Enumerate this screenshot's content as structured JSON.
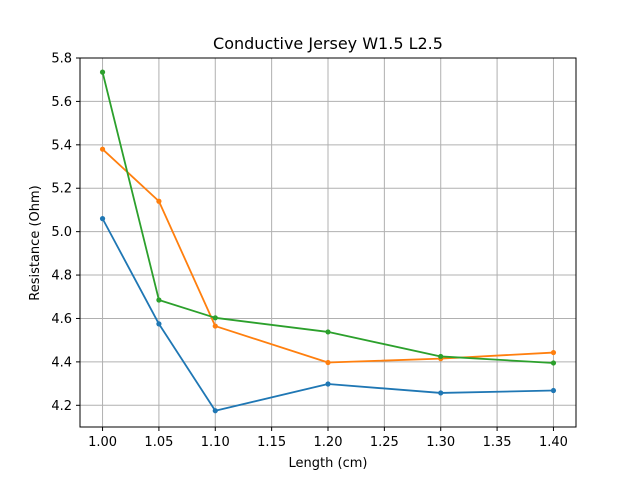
{
  "chart_data": {
    "type": "line",
    "title": "Conductive Jersey W1.5 L2.5",
    "xlabel": "Length (cm)",
    "ylabel": "Resistance (Ohm)",
    "xlim": [
      0.98,
      1.42
    ],
    "ylim": [
      4.1,
      5.8
    ],
    "xticks": [
      1.0,
      1.05,
      1.1,
      1.15,
      1.2,
      1.25,
      1.3,
      1.35,
      1.4
    ],
    "xtick_labels": [
      "1.00",
      "1.05",
      "1.10",
      "1.15",
      "1.20",
      "1.25",
      "1.30",
      "1.35",
      "1.40"
    ],
    "yticks": [
      4.2,
      4.4,
      4.6,
      4.8,
      5.0,
      5.2,
      5.4,
      5.6,
      5.8
    ],
    "ytick_labels": [
      "4.2",
      "4.4",
      "4.6",
      "4.8",
      "5.0",
      "5.2",
      "5.4",
      "5.6",
      "5.8"
    ],
    "grid": true,
    "legend": "none",
    "x": [
      1.0,
      1.05,
      1.1,
      1.2,
      1.3,
      1.4
    ],
    "series": [
      {
        "color": "#1f77b4",
        "values": [
          5.06,
          4.575,
          4.175,
          4.298,
          4.257,
          4.268
        ]
      },
      {
        "color": "#ff7f0e",
        "values": [
          5.38,
          5.14,
          4.565,
          4.397,
          4.415,
          4.443
        ]
      },
      {
        "color": "#2ca02c",
        "values": [
          5.735,
          4.685,
          4.603,
          4.538,
          4.425,
          4.395
        ]
      }
    ]
  }
}
